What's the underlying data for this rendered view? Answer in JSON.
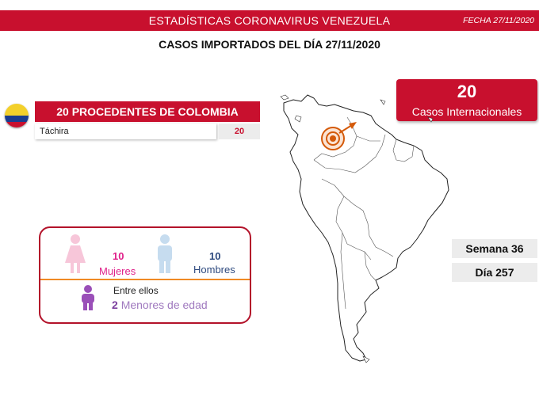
{
  "header": {
    "title": "ESTADÍSTICAS CORONAVIRUS VENEZUELA",
    "date": "FECHA 27/11/2020"
  },
  "subtitle": "CASOS IMPORTADOS DEL DÍA  27/11/2020",
  "colombia": {
    "header": "20 PROCEDENTES DE COLOMBIA",
    "rows": [
      {
        "city": "Táchira",
        "count": "20"
      }
    ]
  },
  "international": {
    "count": "20",
    "label": "Casos Internacionales"
  },
  "gender": {
    "women_count": "10",
    "women_label": "Mujeres",
    "men_count": "10",
    "men_label": "Hombres",
    "among_label": "Entre ellos",
    "minors_count": "2",
    "minors_label": "Menores de edad"
  },
  "period": {
    "week": "Semana 36",
    "day": "Día 257"
  },
  "colors": {
    "brand_red": "#c8102e",
    "women_pink": "#e0218a",
    "men_blue": "#2e4a7f",
    "minors_purple": "#7b3f9e",
    "divider_orange": "#f08a24"
  }
}
